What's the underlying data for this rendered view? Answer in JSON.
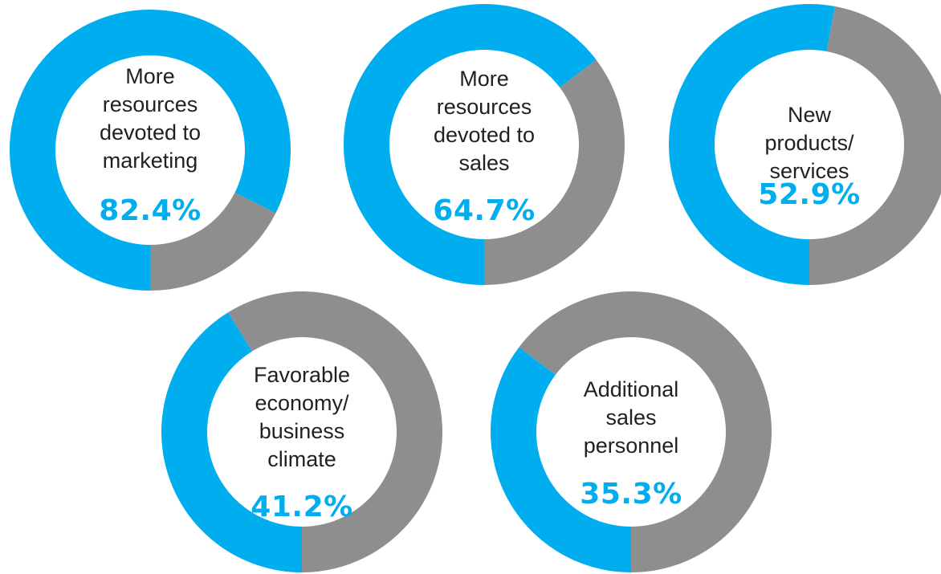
{
  "chart_data": [
    {
      "type": "pie",
      "label": "More\nresources\ndevoted to\nmarketing",
      "value": 82.4,
      "value_text": "82.4%"
    },
    {
      "type": "pie",
      "label": "More\nresources\ndevoted to\nsales",
      "value": 64.7,
      "value_text": "64.7%"
    },
    {
      "type": "pie",
      "label": "New\nproducts/\nservices",
      "value": 52.9,
      "value_text": "52.9%"
    },
    {
      "type": "pie",
      "label": "Favorable\neconomy/\nbusiness\nclimate",
      "value": 41.2,
      "value_text": "41.2%"
    },
    {
      "type": "pie",
      "label": "Additional\nsales\npersonnel",
      "value": 35.3,
      "value_text": "35.3%"
    }
  ],
  "colors": {
    "filled": "#00aeef",
    "remaining": "#8f8e8f",
    "value_text": "#00aeef",
    "label_text": "#231f20"
  }
}
